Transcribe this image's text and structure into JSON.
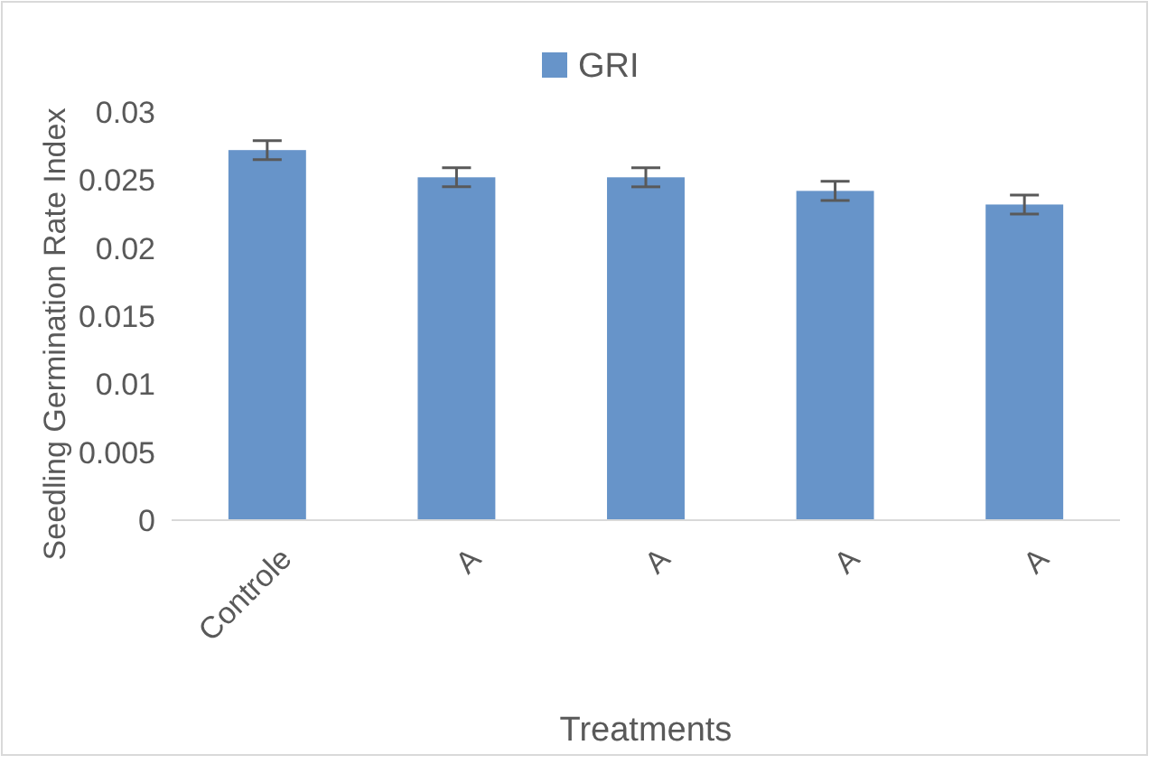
{
  "chart_data": {
    "type": "bar",
    "xlabel": "Treatments",
    "ylabel": "Seedling Germination Rate Index",
    "categories": [
      "Controle",
      "A",
      "A",
      "A",
      "A"
    ],
    "series": [
      {
        "name": "GRI",
        "color": "#6794c9",
        "values": [
          0.0272,
          0.0252,
          0.0252,
          0.0242,
          0.0232
        ],
        "errors": [
          0.0007,
          0.0007,
          0.0007,
          0.0007,
          0.0007
        ]
      }
    ],
    "ylim": [
      0,
      0.03
    ],
    "yticks": [
      0,
      0.005,
      0.01,
      0.015,
      0.02,
      0.025,
      0.03
    ],
    "legend": "top",
    "grid": false
  }
}
